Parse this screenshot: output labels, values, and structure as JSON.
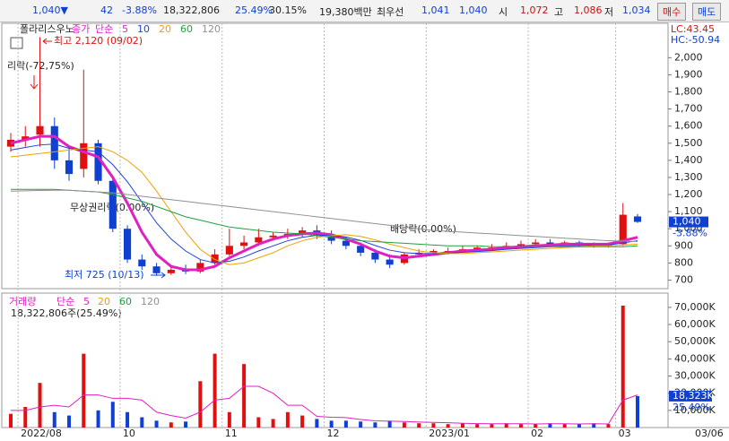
{
  "toolbar": [
    "1,040▼",
    "42",
    "-3.88%",
    "18,322,806",
    "25.49%",
    "30.15%",
    "19,380백만",
    "최우선",
    "1,041",
    "1,040",
    "시",
    "1,072",
    "고",
    "1,086",
    "저",
    "1,034",
    "매수",
    "매도"
  ],
  "chart_data": [
    {
      "type": "candlestick",
      "title": "폴라리스우노",
      "price_label": "종가",
      "ma_label": "단순",
      "up_color": "#e01010",
      "down_color": "#1040d0",
      "categories": [
        null,
        "2022/08",
        null,
        null,
        null,
        null,
        null,
        null,
        "10",
        null,
        null,
        null,
        null,
        null,
        null,
        "11",
        null,
        null,
        null,
        null,
        null,
        null,
        "12",
        null,
        null,
        null,
        null,
        null,
        null,
        "2023/01",
        null,
        null,
        null,
        null,
        null,
        null,
        "02",
        null,
        null,
        null,
        null,
        null,
        "03",
        null
      ],
      "open": [
        1480,
        1520,
        1550,
        1600,
        1400,
        1350,
        1500,
        1280,
        1000,
        820,
        780,
        740,
        760,
        750,
        800,
        850,
        900,
        920,
        950,
        960,
        970,
        990,
        960,
        930,
        900,
        860,
        820,
        800,
        850,
        860,
        870,
        870,
        880,
        890,
        890,
        900,
        910,
        920,
        910,
        920,
        910,
        900,
        910,
        1072
      ],
      "high": [
        1560,
        1600,
        2120,
        1650,
        1480,
        1930,
        1520,
        1300,
        1020,
        850,
        800,
        780,
        790,
        820,
        880,
        1000,
        960,
        1000,
        980,
        1000,
        1010,
        1020,
        990,
        950,
        920,
        880,
        850,
        860,
        880,
        880,
        890,
        900,
        900,
        910,
        920,
        930,
        940,
        940,
        930,
        930,
        920,
        920,
        1150,
        1086
      ],
      "low": [
        1450,
        1480,
        1480,
        1350,
        1280,
        1300,
        1260,
        980,
        800,
        760,
        725,
        730,
        735,
        740,
        790,
        840,
        880,
        900,
        930,
        940,
        950,
        940,
        910,
        880,
        840,
        800,
        770,
        790,
        840,
        850,
        850,
        860,
        870,
        870,
        880,
        890,
        900,
        900,
        900,
        895,
        890,
        890,
        900,
        1034
      ],
      "close": [
        1520,
        1540,
        1600,
        1400,
        1320,
        1500,
        1280,
        1000,
        820,
        780,
        740,
        760,
        750,
        800,
        850,
        900,
        920,
        950,
        960,
        970,
        990,
        960,
        930,
        900,
        860,
        820,
        790,
        850,
        860,
        870,
        870,
        880,
        890,
        890,
        900,
        910,
        920,
        910,
        920,
        910,
        900,
        910,
        1082,
        1040
      ],
      "series": [
        {
          "name": "5",
          "color": "#e020c0",
          "values": [
            1500,
            1520,
            1540,
            1540,
            1480,
            1450,
            1420,
            1300,
            1150,
            980,
            850,
            780,
            760,
            760,
            780,
            830,
            870,
            910,
            940,
            960,
            970,
            975,
            965,
            940,
            910,
            870,
            840,
            830,
            840,
            850,
            860,
            870,
            875,
            880,
            890,
            895,
            900,
            905,
            910,
            910,
            910,
            910,
            930,
            950
          ]
        },
        {
          "name": "10",
          "color": "#2040e0",
          "values": [
            1460,
            1475,
            1490,
            1495,
            1470,
            1460,
            1450,
            1375,
            1275,
            1155,
            1035,
            940,
            870,
            820,
            800,
            810,
            835,
            870,
            900,
            930,
            950,
            962,
            962,
            952,
            932,
            902,
            875,
            860,
            855,
            855,
            857,
            862,
            867,
            872,
            880,
            885,
            890,
            895,
            900,
            902,
            905,
            905,
            917,
            930
          ]
        },
        {
          "name": "20",
          "color": "#f0a000",
          "values": [
            1420,
            1430,
            1440,
            1450,
            1460,
            1470,
            1480,
            1450,
            1400,
            1330,
            1220,
            1100,
            980,
            880,
            820,
            790,
            800,
            830,
            860,
            900,
            930,
            950,
            960,
            965,
            955,
            935,
            910,
            890,
            870,
            860,
            855,
            855,
            860,
            865,
            870,
            875,
            880,
            885,
            890,
            895,
            900,
            900,
            905,
            910
          ]
        },
        {
          "name": "60",
          "color": "#20a040",
          "values": [
            1230,
            1230,
            1230,
            1230,
            1225,
            1220,
            1215,
            1200,
            1180,
            1160,
            1130,
            1100,
            1070,
            1050,
            1030,
            1010,
            1000,
            990,
            980,
            975,
            970,
            960,
            950,
            940,
            930,
            925,
            920,
            915,
            910,
            905,
            900,
            900,
            900,
            895,
            895,
            895,
            895,
            895,
            895,
            895,
            895,
            895,
            895,
            900
          ]
        },
        {
          "name": "120",
          "color": "#909090",
          "values": [
            1220,
            1222,
            1224,
            1225,
            1225,
            1220,
            1215,
            1210,
            1200,
            1190,
            1180,
            1170,
            1160,
            1150,
            1140,
            1130,
            1120,
            1110,
            1100,
            1090,
            1080,
            1070,
            1060,
            1050,
            1040,
            1030,
            1020,
            1010,
            1000,
            990,
            985,
            980,
            975,
            970,
            965,
            960,
            955,
            950,
            945,
            940,
            935,
            930,
            928,
            925
          ]
        }
      ],
      "ylim": [
        650,
        2180
      ],
      "yticks": [
        700,
        800,
        900,
        {
          "value": 1000,
          "label": "1,000"
        },
        {
          "value": 1100,
          "label": "1,100"
        },
        {
          "value": 1200,
          "label": "1,200"
        },
        {
          "value": 1300,
          "label": "1,300"
        },
        {
          "value": 1400,
          "label": "1,400"
        },
        {
          "value": 1500,
          "label": "1,500"
        },
        {
          "value": 1600,
          "label": "1,600"
        },
        {
          "value": 1700,
          "label": "1,700"
        },
        {
          "value": 1800,
          "label": "1,800"
        },
        {
          "value": 1900,
          "label": "1,900"
        },
        {
          "value": 2000,
          "label": "2,000"
        }
      ],
      "annotations": [
        "최고 2,120 (09/02)",
        "리락(-72,75%)",
        "무상권리락(0.00%)",
        "배당락(0.00%)",
        "최저 725 (10/13)"
      ],
      "lc": "LC:43.45",
      "hc": "HC:-50.94",
      "current_label": "1,040",
      "change_label": "-3.88%"
    },
    {
      "type": "bar",
      "title": "거래량",
      "ma_label": "단순",
      "subtitle": "18,322,806주(25.49%)",
      "values": [
        8000,
        12000,
        26000,
        9000,
        7000,
        43000,
        10000,
        15000,
        9000,
        6000,
        4000,
        3000,
        3500,
        27000,
        43000,
        9000,
        37000,
        6000,
        5000,
        9000,
        7000,
        5000,
        4000,
        4000,
        3500,
        3000,
        4000,
        3000,
        2500,
        2500,
        2000,
        2500,
        2000,
        2000,
        2500,
        2000,
        2000,
        2500,
        2000,
        2000,
        2500,
        2000,
        71000,
        18323
      ],
      "series": [
        {
          "name": "5",
          "color": "#e020c0",
          "values": [
            10000,
            10000,
            12000,
            13000,
            12000,
            19000,
            19000,
            17000,
            17000,
            16000,
            9000,
            7000,
            5500,
            9000,
            16000,
            17000,
            24000,
            24000,
            20000,
            13000,
            13000,
            6500,
            6000,
            5800,
            4700,
            3900,
            3700,
            3500,
            3200,
            3000,
            2800,
            2500,
            2300,
            2200,
            2200,
            2200,
            2100,
            2200,
            2200,
            2100,
            2200,
            2100,
            16000,
            19000
          ]
        }
      ],
      "other_periods": [
        {
          "name": "20",
          "color": "#f0a000"
        },
        {
          "name": "60",
          "color": "#20a040"
        },
        {
          "name": "120",
          "color": "#909090"
        }
      ],
      "ylim": [
        0,
        78300
      ],
      "yticks": [
        {
          "value": 10000,
          "label": "10,000K"
        },
        {
          "value": 20000,
          "label": "20,000K"
        },
        {
          "value": 30000,
          "label": "30,000K"
        },
        {
          "value": 40000,
          "label": "40,000K"
        },
        {
          "value": 50000,
          "label": "50,000K"
        },
        {
          "value": 60000,
          "label": "60,000K"
        },
        {
          "value": 70000,
          "label": "70,000K"
        }
      ],
      "current_label": "18,323K",
      "ratio_label": "25.49%",
      "last_date": "03/06"
    }
  ]
}
